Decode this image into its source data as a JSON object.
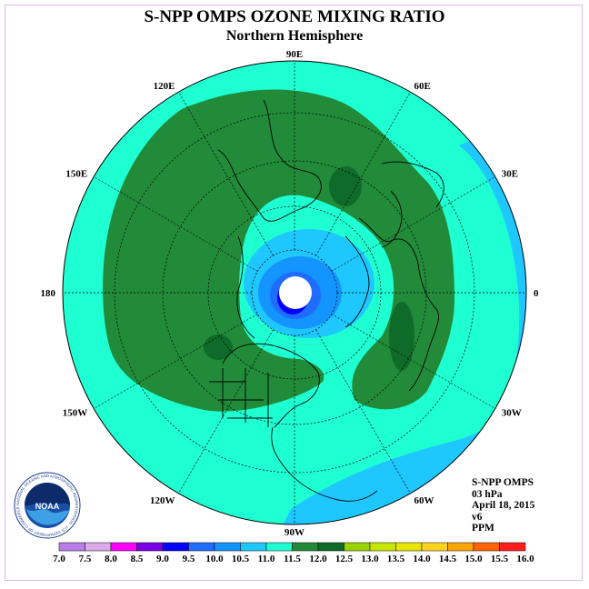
{
  "title": "S-NPP OMPS OZONE MIXING RATIO",
  "subtitle": "Northern Hemisphere",
  "longitude_labels": [
    "90E",
    "60E",
    "30E",
    "0",
    "30W",
    "60W",
    "90W",
    "120W",
    "150W",
    "180",
    "150E",
    "120E"
  ],
  "info": {
    "instrument": "S-NPP OMPS",
    "level": "03 hPa",
    "date": "April 18, 2015",
    "version": "v6",
    "units": "PPM"
  },
  "colorbar": {
    "ticks": [
      "7.0",
      "7.5",
      "8.0",
      "8.5",
      "9.0",
      "9.5",
      "10.0",
      "10.5",
      "11.0",
      "11.5",
      "12.0",
      "12.5",
      "13.0",
      "13.5",
      "14.0",
      "14.5",
      "15.0",
      "15.5",
      "16.0"
    ],
    "colors": [
      "#b87de6",
      "#dba9e8",
      "#ff00ff",
      "#7a00e6",
      "#0000ff",
      "#1f6cff",
      "#1494ff",
      "#1ec8ff",
      "#1effd2",
      "#228b3a",
      "#0f6b2a",
      "#9ad400",
      "#c8e600",
      "#e6e600",
      "#ffd21e",
      "#ffa500",
      "#ff6400",
      "#ff1e1e",
      "#8b5a2b"
    ]
  },
  "logo": {
    "text": "NOAA",
    "ring_text": "NATIONAL OCEANIC AND ATMOSPHERIC ADMINISTRATION · U.S. DEPARTMENT OF COMMERCE"
  }
}
